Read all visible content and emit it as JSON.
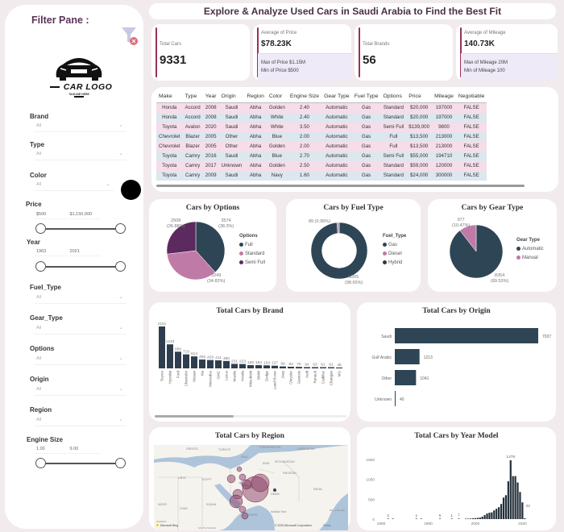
{
  "filter_pane": {
    "title": "Filter Pane :",
    "logo_text": "CAR LOGO",
    "logo_tagline": "TAGLINE HERE",
    "brand": {
      "label": "Brand",
      "value": "All"
    },
    "type": {
      "label": "Type",
      "value": "All"
    },
    "color": {
      "label": "Color",
      "value": "All"
    },
    "price": {
      "label": "Price",
      "min": "$500",
      "max": "$1,150,000"
    },
    "year": {
      "label": "Year",
      "min": "1963",
      "max": "2021"
    },
    "fuel_type": {
      "label": "Fuel_Type",
      "value": "All"
    },
    "gear_type": {
      "label": "Gear_Type",
      "value": "All"
    },
    "options": {
      "label": "Options",
      "value": "All"
    },
    "origin": {
      "label": "Origin",
      "value": "All"
    },
    "region": {
      "label": "Region",
      "value": "All"
    },
    "engine_size": {
      "label": "Engine Size",
      "min": "1.00",
      "max": "9.00"
    }
  },
  "header": {
    "title": "Explore & Analyze Used Cars in Saudi Arabia to Find the Best Fit"
  },
  "kpis": {
    "total_cars": {
      "label": "Total Cars",
      "value": "9331"
    },
    "avg_price": {
      "label": "Average of Price",
      "value": "$78.23K",
      "max": "Max of Price $1.15M",
      "min": "Min of Price $500"
    },
    "total_brands": {
      "label": "Total Brands",
      "value": "56"
    },
    "avg_mileage": {
      "label": "Average of Mileage",
      "value": "140.73K",
      "max": "Max of Mileage 20M",
      "min": "Min of Mileage 100"
    }
  },
  "table": {
    "columns": [
      "Make",
      "Type",
      "Year",
      "Origin",
      "Region",
      "Color",
      "Engine Size",
      "Gear Type",
      "Fuel Type",
      "Options",
      "Price",
      "Mileage",
      "Negotiable"
    ],
    "rows": [
      [
        "Honda",
        "Accord",
        "2008",
        "Saudi",
        "Abha",
        "Golden",
        "2.40",
        "Automatic",
        "Gas",
        "Standard",
        "$20,000",
        "197000",
        "FALSE"
      ],
      [
        "Honda",
        "Accord",
        "2008",
        "Saudi",
        "Abha",
        "White",
        "2.40",
        "Automatic",
        "Gas",
        "Standard",
        "$20,000",
        "197000",
        "FALSE"
      ],
      [
        "Toyota",
        "Avalon",
        "2020",
        "Saudi",
        "Abha",
        "White",
        "3.50",
        "Automatic",
        "Gas",
        "Semi Full",
        "$139,000",
        "9800",
        "FALSE"
      ],
      [
        "Chevrolet",
        "Blazer",
        "2005",
        "Other",
        "Abha",
        "Blue",
        "2.00",
        "Automatic",
        "Gas",
        "Full",
        "$13,500",
        "213000",
        "FALSE"
      ],
      [
        "Chevrolet",
        "Blazer",
        "2005",
        "Other",
        "Abha",
        "Golden",
        "2.00",
        "Automatic",
        "Gas",
        "Full",
        "$13,500",
        "213000",
        "FALSE"
      ],
      [
        "Toyota",
        "Camry",
        "2016",
        "Saudi",
        "Abha",
        "Blue",
        "2.70",
        "Automatic",
        "Gas",
        "Semi Full",
        "$55,000",
        "194710",
        "FALSE"
      ],
      [
        "Toyota",
        "Camry",
        "2017",
        "Unknown",
        "Abha",
        "Golden",
        "2.50",
        "Automatic",
        "Gas",
        "Standard",
        "$59,000",
        "120000",
        "FALSE"
      ],
      [
        "Toyota",
        "Camry",
        "2009",
        "Saudi",
        "Abha",
        "Navy",
        "1.60",
        "Automatic",
        "Gas",
        "Standard",
        "$24,000",
        "300000",
        "FALSE"
      ]
    ]
  },
  "colors": {
    "dark": "#2e4556",
    "pink": "#c07aa8",
    "purple": "#5c2a5e",
    "accent": "#9b3158"
  },
  "chart_data": [
    {
      "type": "pie",
      "title": "Cars by Options",
      "legend_title": "Options",
      "categories": [
        "Full",
        "Standard",
        "Semi Full"
      ],
      "values": [
        3574,
        3249,
        2508
      ],
      "labels": [
        "3574\n(38.3%)",
        "3249\n(34.82%)",
        "2508\n(26.88%)"
      ],
      "colors": [
        "#2e4556",
        "#c07aa8",
        "#5c2a5e"
      ]
    },
    {
      "type": "pie",
      "title": "Cars by Fuel Type",
      "legend_title": "Fuel_Type",
      "donut": true,
      "categories": [
        "Gas",
        "Diesel",
        "Hybrid"
      ],
      "values": [
        9205,
        89,
        37
      ],
      "labels": [
        "9205\n(98.65%)",
        "89 (0.95%)"
      ],
      "colors": [
        "#2e4556",
        "#c07aa8",
        "#2e3a44"
      ]
    },
    {
      "type": "pie",
      "title": "Cars by Gear Type",
      "legend_title": "Gear Type",
      "categories": [
        "Automatic",
        "Manual"
      ],
      "values": [
        8354,
        977
      ],
      "labels": [
        "8354\n(89.53%)",
        "977\n(10.47%)"
      ],
      "colors": [
        "#2e4556",
        "#c07aa8"
      ]
    },
    {
      "type": "bar",
      "title": "Total Cars by Brand",
      "categories": [
        "Toyota",
        "Hyundai",
        "Ford",
        "Chevrolet",
        "Nissan",
        "Kia",
        "Mercedes",
        "GMC",
        "Lexus",
        "Mazda",
        "Honda",
        "Mitsubishi",
        "BMW",
        "Dodge",
        "Land Rover",
        "Jeep",
        "Chrysler",
        "Genesis",
        "Audi",
        "Renault",
        "Cadillac",
        "Changan",
        "MG"
      ],
      "values": [
        2151,
        1233,
        856,
        719,
        614,
        455,
        429,
        411,
        380,
        231,
        223,
        166,
        164,
        154,
        137,
        99,
        83,
        75,
        64,
        63,
        61,
        61,
        45
      ]
    },
    {
      "type": "bar",
      "orientation": "horizontal",
      "title": "Total Cars by Origin",
      "categories": [
        "Saudi",
        "Gulf Arabic",
        "Other",
        "Unknown"
      ],
      "values": [
        7037,
        1213,
        1041,
        40
      ]
    },
    {
      "type": "bar",
      "title": "Total Cars by Year Model",
      "x_ticks": [
        "1960",
        "1980",
        "2000",
        "2020"
      ],
      "y_ticks": [
        "0",
        "500",
        "1000",
        "1500"
      ],
      "ylim": [
        0,
        1600
      ],
      "annotations": [
        "2",
        "1",
        "5",
        "1",
        "7",
        "1478",
        "22"
      ],
      "x": [
        1963,
        1965,
        1975,
        1977,
        1985,
        1990,
        1993,
        1996,
        1997,
        1998,
        1999,
        2000,
        2001,
        2002,
        2003,
        2004,
        2005,
        2006,
        2007,
        2008,
        2009,
        2010,
        2011,
        2012,
        2013,
        2014,
        2015,
        2016,
        2017,
        2018,
        2019,
        2020,
        2021
      ],
      "values": [
        2,
        2,
        1,
        1,
        5,
        1,
        7,
        10,
        12,
        15,
        20,
        25,
        30,
        40,
        60,
        100,
        140,
        160,
        170,
        220,
        260,
        300,
        380,
        540,
        600,
        950,
        1478,
        1080,
        1080,
        920,
        680,
        420,
        22
      ]
    }
  ],
  "map": {
    "title": "Total Cars by Region",
    "labels": [
      "TÜRKIYE",
      "IRAQ",
      "IRAN",
      "AFGHANISTAN",
      "PAKISTAN",
      "EGYPT",
      "LIBYA",
      "SUDAN",
      "CHAD",
      "NIGER",
      "YEMEN",
      "OMAN",
      "INDIA",
      "Arabian Sea",
      "Bay of Bengal",
      "NIGERIA",
      "SOUTH SUDAN",
      "GREECE",
      "TURKMENISTAN",
      "UZBEKISTAN"
    ],
    "copyright": "© 2024 Microsoft Corporation",
    "terms": "Terms",
    "bing": "Microsoft Bing"
  }
}
